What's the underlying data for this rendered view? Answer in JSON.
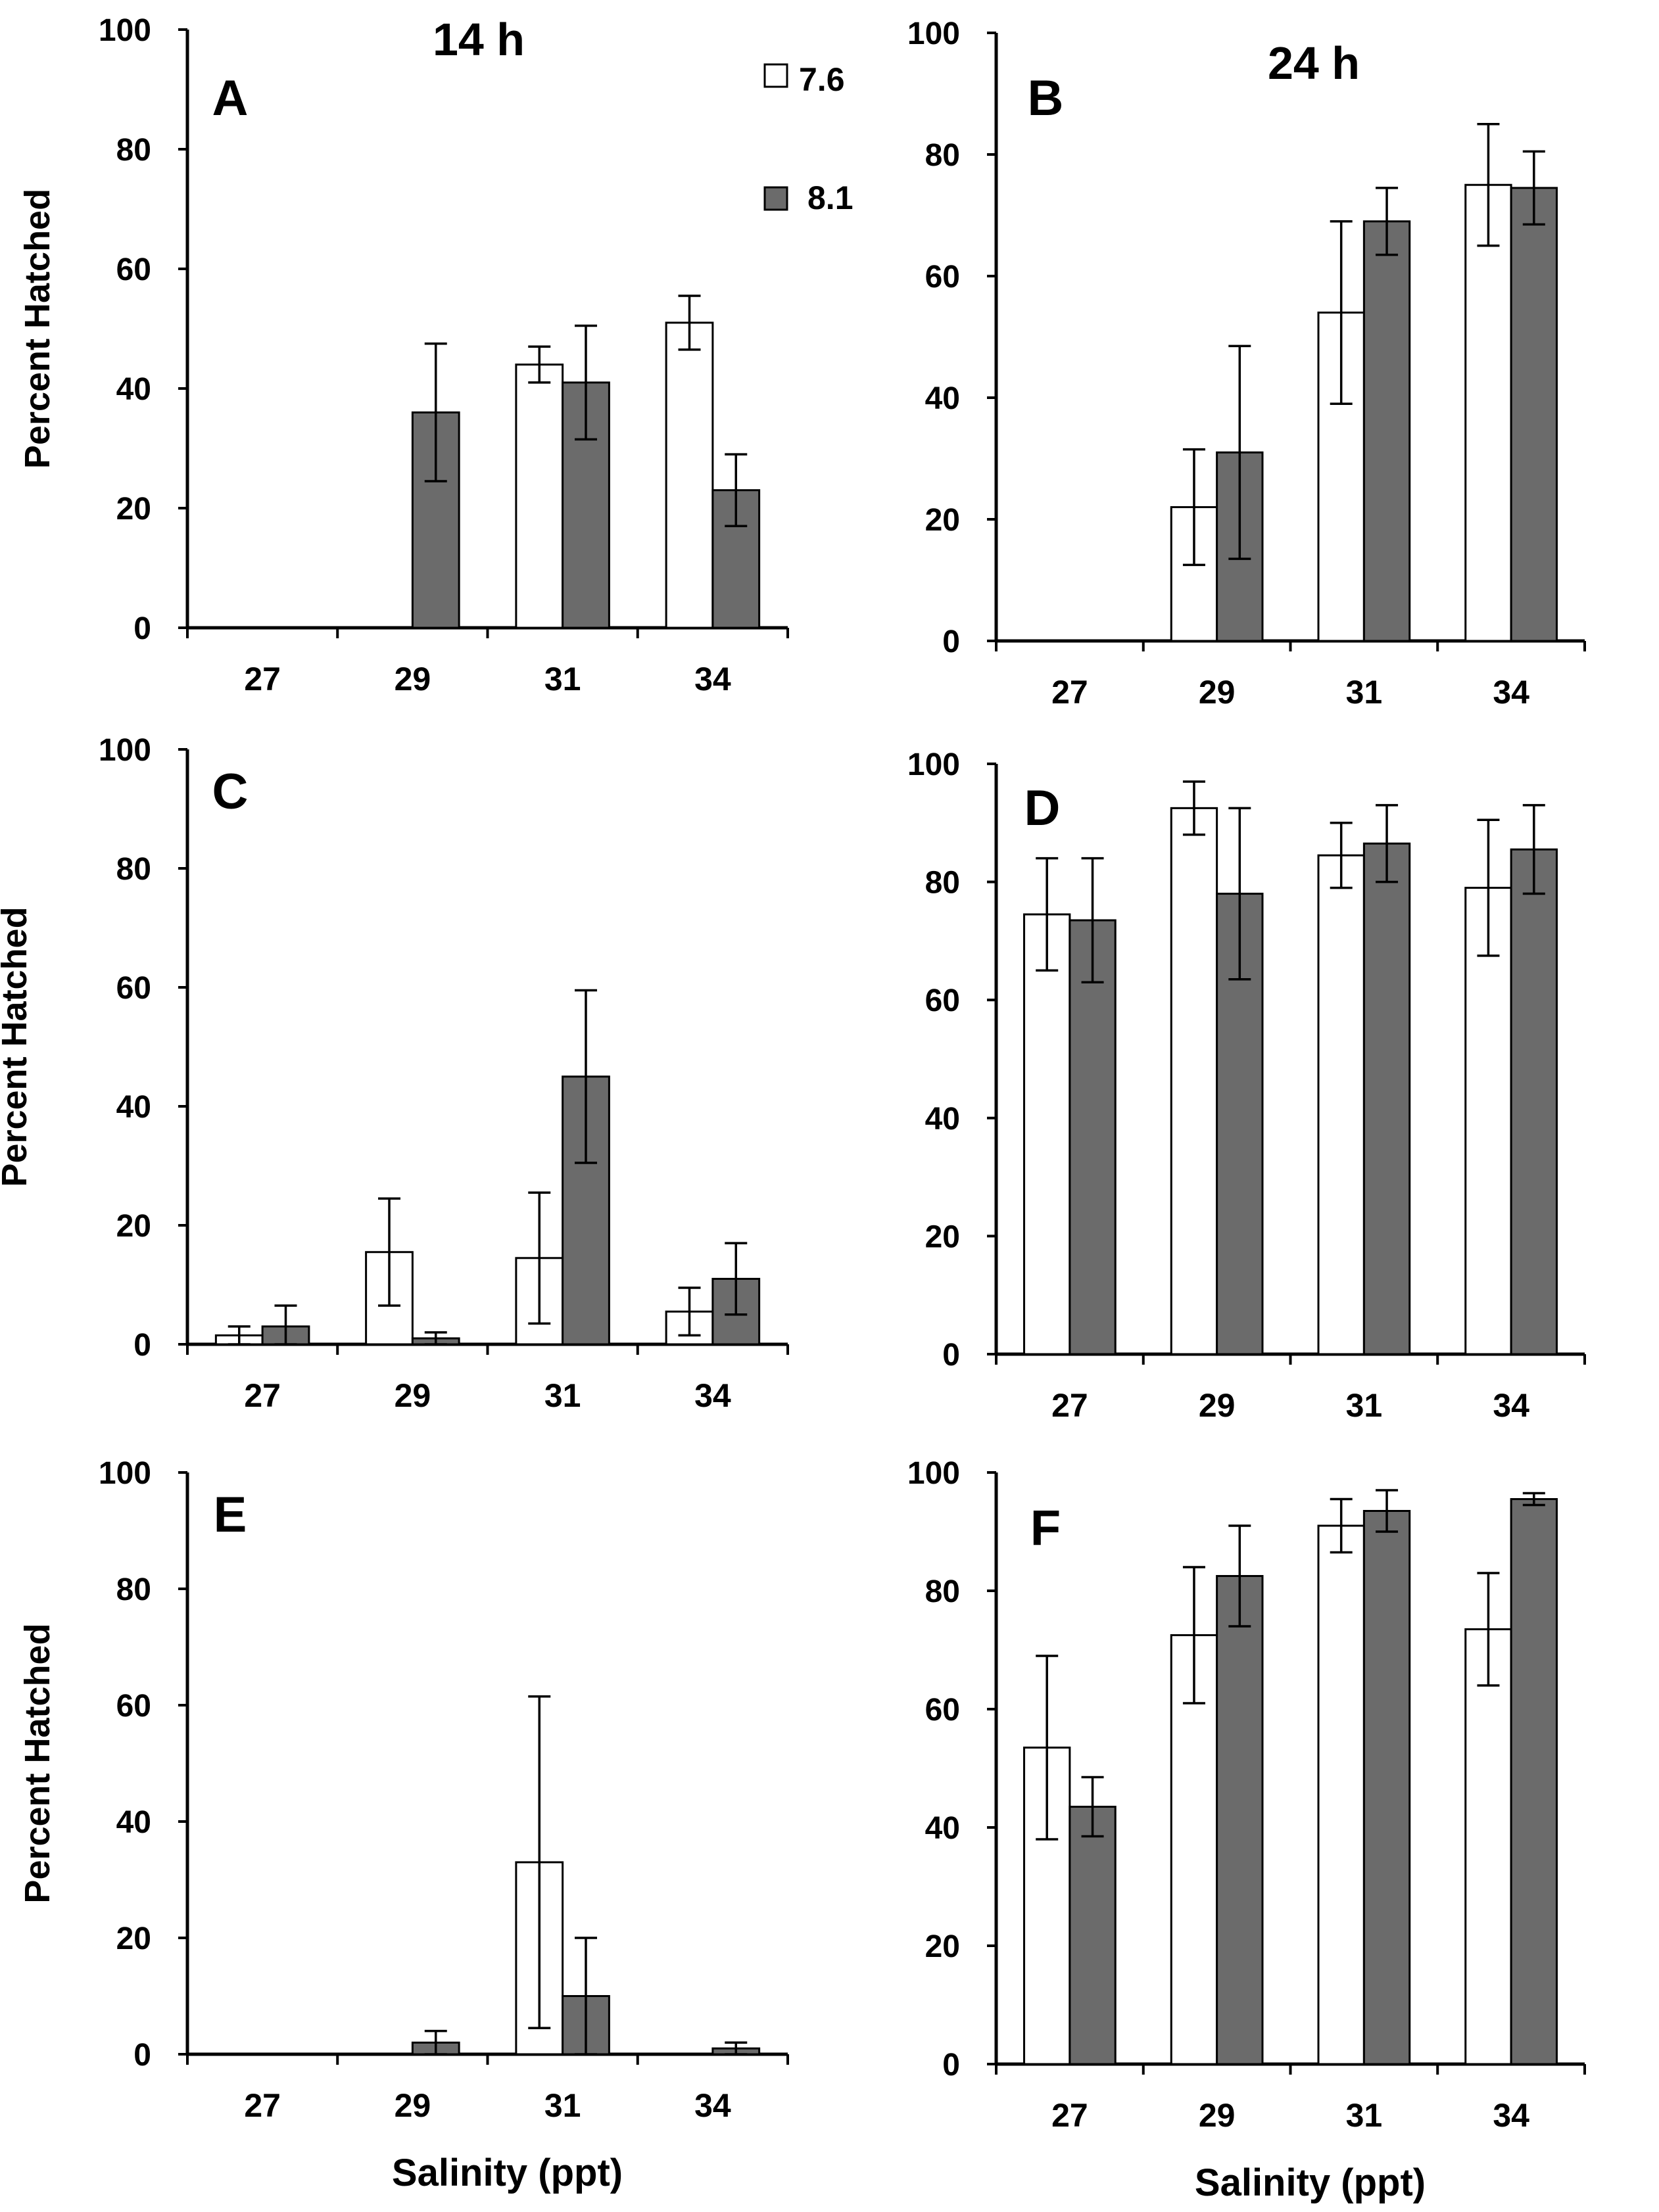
{
  "legend": [
    {
      "label": "7.6",
      "color": "#ffffff"
    },
    {
      "label": "8.1",
      "color": "#6b6b6b"
    }
  ],
  "column_titles": [
    "14 h",
    "24 h"
  ],
  "chart_data": [
    {
      "panel": "A",
      "type": "bar",
      "ylabel": "Percent Hatched",
      "xlabel": "",
      "categories": [
        "27",
        "29",
        "31",
        "34"
      ],
      "ylim": [
        0,
        100
      ],
      "yticks": [
        "0",
        "20",
        "40",
        "60",
        "80",
        "100"
      ],
      "series": [
        {
          "name": "7.6",
          "values": [
            0,
            0,
            44,
            51
          ],
          "errors": [
            0,
            0,
            3,
            4.5
          ]
        },
        {
          "name": "8.1",
          "values": [
            0,
            36,
            41,
            23
          ],
          "errors": [
            0,
            11.5,
            9.5,
            6
          ]
        }
      ]
    },
    {
      "panel": "B",
      "type": "bar",
      "ylabel": "",
      "xlabel": "",
      "categories": [
        "27",
        "29",
        "31",
        "34"
      ],
      "ylim": [
        0,
        100
      ],
      "yticks": [
        "0",
        "20",
        "40",
        "60",
        "80",
        "100"
      ],
      "series": [
        {
          "name": "7.6",
          "values": [
            0,
            22,
            54,
            75
          ],
          "errors": [
            0,
            9.5,
            15,
            10
          ]
        },
        {
          "name": "8.1",
          "values": [
            0,
            31,
            69,
            74.5
          ],
          "errors": [
            0,
            17.5,
            5.5,
            6
          ]
        }
      ]
    },
    {
      "panel": "C",
      "type": "bar",
      "ylabel": "Percent Hatched",
      "xlabel": "",
      "categories": [
        "27",
        "29",
        "31",
        "34"
      ],
      "ylim": [
        0,
        100
      ],
      "yticks": [
        "0",
        "20",
        "40",
        "60",
        "80",
        "100"
      ],
      "series": [
        {
          "name": "7.6",
          "values": [
            1.5,
            15.5,
            14.5,
            5.5
          ],
          "errors": [
            1.5,
            9,
            11,
            4
          ]
        },
        {
          "name": "8.1",
          "values": [
            3,
            1,
            45,
            11
          ],
          "errors": [
            3.5,
            1,
            14.5,
            6
          ]
        }
      ]
    },
    {
      "panel": "D",
      "type": "bar",
      "ylabel": "",
      "xlabel": "",
      "categories": [
        "27",
        "29",
        "31",
        "34"
      ],
      "ylim": [
        0,
        100
      ],
      "yticks": [
        "0",
        "20",
        "40",
        "60",
        "80",
        "100"
      ],
      "series": [
        {
          "name": "7.6",
          "values": [
            74.5,
            92.5,
            84.5,
            79
          ],
          "errors": [
            9.5,
            4.5,
            5.5,
            11.5
          ]
        },
        {
          "name": "8.1",
          "values": [
            73.5,
            78,
            86.5,
            85.5
          ],
          "errors": [
            10.5,
            14.5,
            6.5,
            7.5
          ]
        }
      ]
    },
    {
      "panel": "E",
      "type": "bar",
      "ylabel": "Percent Hatched",
      "xlabel": "Salinity (ppt)",
      "categories": [
        "27",
        "29",
        "31",
        "34"
      ],
      "ylim": [
        0,
        100
      ],
      "yticks": [
        "0",
        "20",
        "40",
        "60",
        "80",
        "100"
      ],
      "series": [
        {
          "name": "7.6",
          "values": [
            0,
            0,
            33,
            0
          ],
          "errors": [
            0,
            0,
            28.5,
            0
          ]
        },
        {
          "name": "8.1",
          "values": [
            0,
            2,
            10,
            1
          ],
          "errors": [
            0,
            2,
            10,
            1
          ]
        }
      ]
    },
    {
      "panel": "F",
      "type": "bar",
      "ylabel": "",
      "xlabel": "Salinity (ppt)",
      "categories": [
        "27",
        "29",
        "31",
        "34"
      ],
      "ylim": [
        0,
        100
      ],
      "yticks": [
        "0",
        "20",
        "40",
        "60",
        "80",
        "100"
      ],
      "series": [
        {
          "name": "7.6",
          "values": [
            53.5,
            72.5,
            91,
            73.5
          ],
          "errors": [
            15.5,
            11.5,
            4.5,
            9.5
          ]
        },
        {
          "name": "8.1",
          "values": [
            43.5,
            82.5,
            93.5,
            95.5
          ],
          "errors": [
            5,
            8.5,
            3.5,
            1
          ]
        }
      ]
    }
  ]
}
